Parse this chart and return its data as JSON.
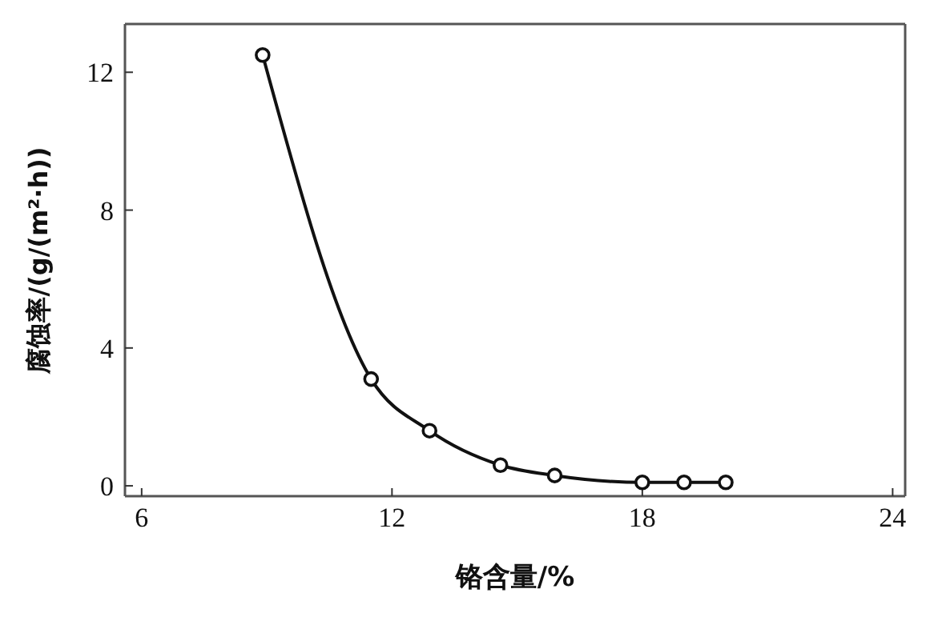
{
  "chart_data": {
    "type": "line",
    "xlabel": "铬含量/%",
    "ylabel": "腐蚀率/(g/(m²·h))",
    "x": [
      8.9,
      11.5,
      12.9,
      14.6,
      15.9,
      18,
      19,
      20
    ],
    "series": [
      {
        "color": "#111111",
        "values": [
          12.5,
          3.1,
          1.6,
          0.6,
          0.3,
          0.1,
          0.1,
          0.1
        ]
      }
    ],
    "xlim": [
      5.6,
      24.3
    ],
    "xticks": [
      6,
      12,
      18,
      24
    ],
    "ylim": [
      -0.3,
      13.4
    ],
    "yticks": [
      0,
      4,
      8,
      12
    ],
    "grid": false,
    "marker": "circle",
    "line_style": "solid"
  }
}
